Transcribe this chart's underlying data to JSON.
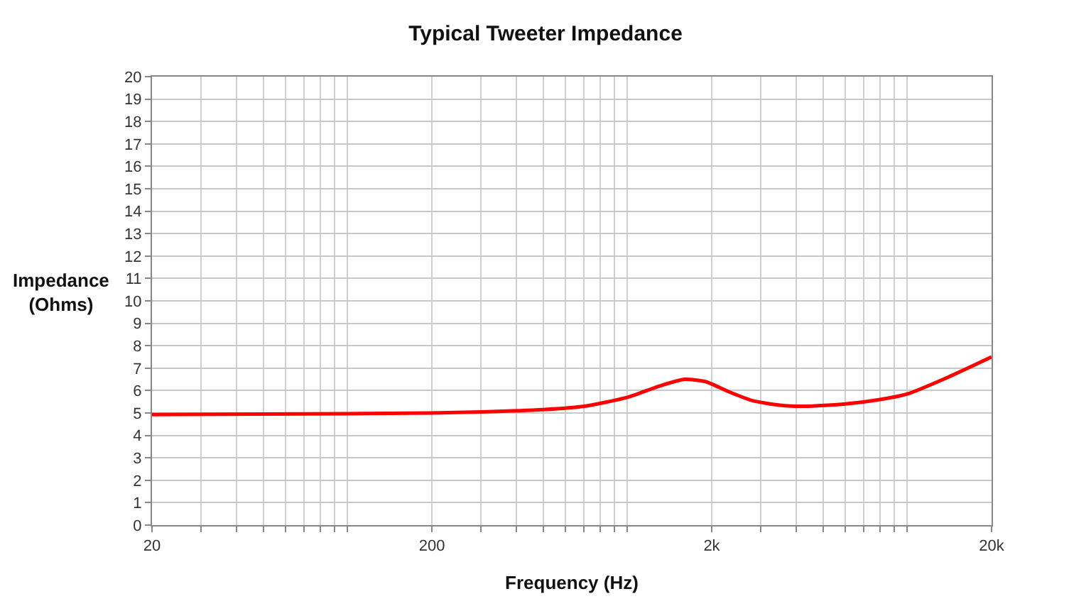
{
  "chart_data": {
    "type": "line",
    "title": "Typical Tweeter Impedance",
    "xlabel": "Frequency (Hz)",
    "ylabel": "Impedance (Ohms)",
    "x": [
      20,
      50,
      100,
      200,
      300,
      500,
      700,
      1000,
      1300,
      1600,
      1900,
      2300,
      2800,
      3500,
      4300,
      6000,
      8000,
      10000,
      14000,
      20000
    ],
    "series": [
      {
        "color": "#ff0000",
        "values": [
          4.93,
          4.95,
          4.97,
          5.0,
          5.05,
          5.15,
          5.3,
          5.7,
          6.2,
          6.5,
          6.4,
          5.95,
          5.55,
          5.35,
          5.3,
          5.4,
          5.6,
          5.85,
          6.6,
          7.5
        ]
      }
    ],
    "log": "x",
    "xlim": [
      20,
      20000
    ],
    "xticks": [
      20,
      {
        "value": 30,
        "label": null
      },
      {
        "value": 40,
        "label": null
      },
      {
        "value": 50,
        "label": null
      },
      {
        "value": 60,
        "label": null
      },
      {
        "value": 70,
        "label": null
      },
      {
        "value": 80,
        "label": null
      },
      {
        "value": 90,
        "label": null
      },
      {
        "value": 100,
        "label": null
      },
      200,
      {
        "value": 300,
        "label": null
      },
      {
        "value": 400,
        "label": null
      },
      {
        "value": 500,
        "label": null
      },
      {
        "value": 600,
        "label": null
      },
      {
        "value": 700,
        "label": null
      },
      {
        "value": 800,
        "label": null
      },
      {
        "value": 900,
        "label": null
      },
      {
        "value": 1000,
        "label": null
      },
      {
        "value": 2000,
        "label": "2k"
      },
      {
        "value": 3000,
        "label": null
      },
      {
        "value": 4000,
        "label": null
      },
      {
        "value": 5000,
        "label": null
      },
      {
        "value": 6000,
        "label": null
      },
      {
        "value": 7000,
        "label": null
      },
      {
        "value": 8000,
        "label": null
      },
      {
        "value": 9000,
        "label": null
      },
      {
        "value": 10000,
        "label": null
      },
      {
        "value": 20000,
        "label": "20k"
      }
    ],
    "ylim": [
      0,
      20
    ],
    "yticks": [
      0,
      1,
      2,
      3,
      4,
      5,
      6,
      7,
      8,
      9,
      10,
      11,
      12,
      13,
      14,
      15,
      16,
      17,
      18,
      19,
      20
    ],
    "grid": true,
    "marker": "none",
    "line_style": "solid"
  }
}
